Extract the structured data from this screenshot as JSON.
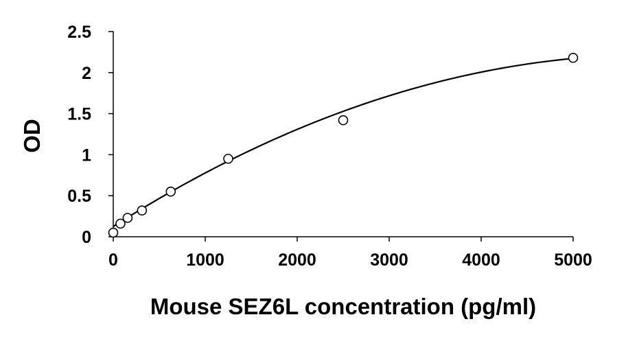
{
  "chart_data": {
    "type": "scatter",
    "title": "",
    "xlabel": "Mouse SEZ6L concentration (pg/ml)",
    "ylabel": "OD",
    "xlim": [
      0,
      5000
    ],
    "ylim": [
      0,
      2.5
    ],
    "x_ticks": [
      0,
      1000,
      2000,
      3000,
      4000,
      5000
    ],
    "y_ticks": [
      0,
      0.5,
      1,
      1.5,
      2,
      2.5
    ],
    "x_tick_labels": [
      "0",
      "1000",
      "2000",
      "3000",
      "4000",
      "5000"
    ],
    "y_tick_labels": [
      "0",
      "0.5",
      "1",
      "1.5",
      "2",
      "2.5"
    ],
    "grid": false,
    "legend": "none",
    "series": [
      {
        "marker": "open-circle",
        "points": [
          {
            "x": 0,
            "y": 0.05
          },
          {
            "x": 78,
            "y": 0.16
          },
          {
            "x": 156,
            "y": 0.23
          },
          {
            "x": 312,
            "y": 0.32
          },
          {
            "x": 625,
            "y": 0.55
          },
          {
            "x": 1250,
            "y": 0.95
          },
          {
            "x": 2500,
            "y": 1.42
          },
          {
            "x": 5000,
            "y": 2.18
          }
        ]
      }
    ],
    "trendline": {
      "type": "polynomial",
      "coefficients": [
        0.125,
        0.000713,
        -6.07e-08
      ],
      "x_range": [
        0,
        5000
      ]
    },
    "colors": {
      "axis": "#000000",
      "marker_stroke": "#000000",
      "marker_fill": "#ffffff",
      "line": "#000000"
    }
  }
}
